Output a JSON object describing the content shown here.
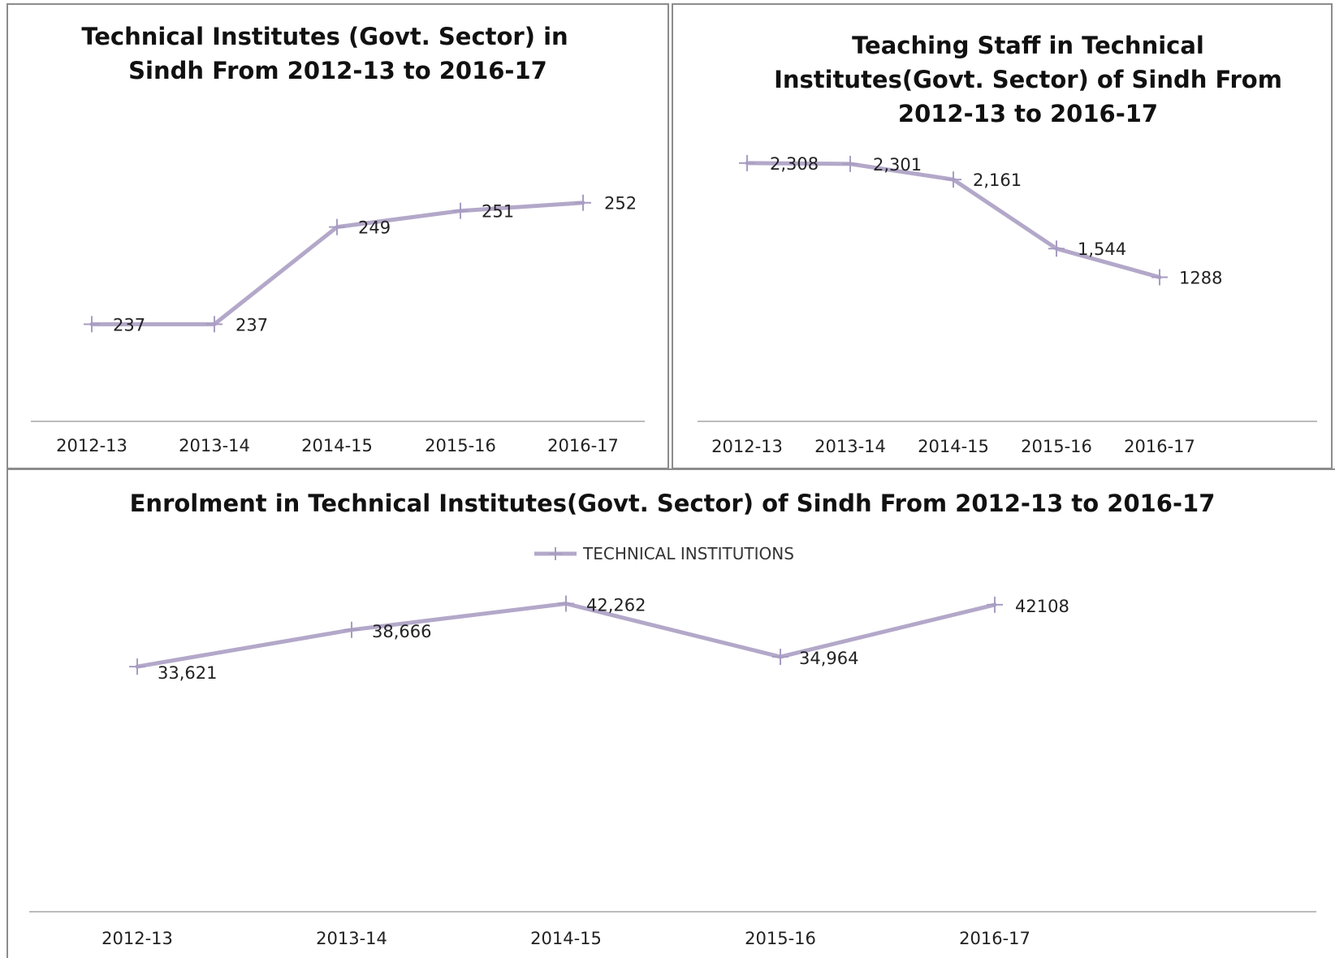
{
  "chart_data": [
    {
      "type": "line",
      "title_lines": [
        "Technical Institutes (Govt. Sector) in",
        "Sindh From 2012-13 to 2016-17"
      ],
      "categories": [
        "2012-13",
        "2013-14",
        "2014-15",
        "2015-16",
        "2016-17"
      ],
      "series": [
        {
          "values": [
            237,
            237,
            249,
            251,
            252
          ],
          "labels": [
            "237",
            "237",
            "249",
            "251",
            "252"
          ]
        }
      ],
      "ylim": [
        225,
        262
      ],
      "xlabel": "",
      "ylabel": "",
      "grid": false,
      "legend": "none",
      "color": "#b3a8c9"
    },
    {
      "type": "line",
      "title_lines": [
        "Teaching Staff in Technical",
        "Institutes(Govt. Sector) of Sindh From",
        "2012-13 to 2016-17"
      ],
      "categories": [
        "2012-13",
        "2013-14",
        "2014-15",
        "2015-16",
        "2016-17"
      ],
      "series": [
        {
          "values": [
            2308,
            2301,
            2161,
            1544,
            1288
          ],
          "labels": [
            "2,308",
            "2,301",
            "2,161",
            "1,544",
            "1288"
          ]
        }
      ],
      "ylim": [
        0,
        2750
      ],
      "xlabel": "",
      "ylabel": "",
      "grid": false,
      "legend": "none",
      "color": "#b3a8c9"
    },
    {
      "type": "line",
      "title_lines": [
        "Enrolment in Technical Institutes(Govt. Sector) of Sindh From 2012-13 to 2016-17"
      ],
      "categories": [
        "2012-13",
        "2013-14",
        "2014-15",
        "2015-16",
        "2016-17"
      ],
      "series": [
        {
          "name": "TECHNICAL INSTITUTIONS",
          "values": [
            33621,
            38666,
            42262,
            34964,
            42108
          ],
          "labels": [
            "33,621",
            "38,666",
            "42,262",
            "34,964",
            "42108"
          ]
        }
      ],
      "ylim": [
        0,
        49000
      ],
      "xlabel": "",
      "ylabel": "",
      "grid": false,
      "legend": "top-center",
      "color": "#b3a8c9"
    }
  ]
}
